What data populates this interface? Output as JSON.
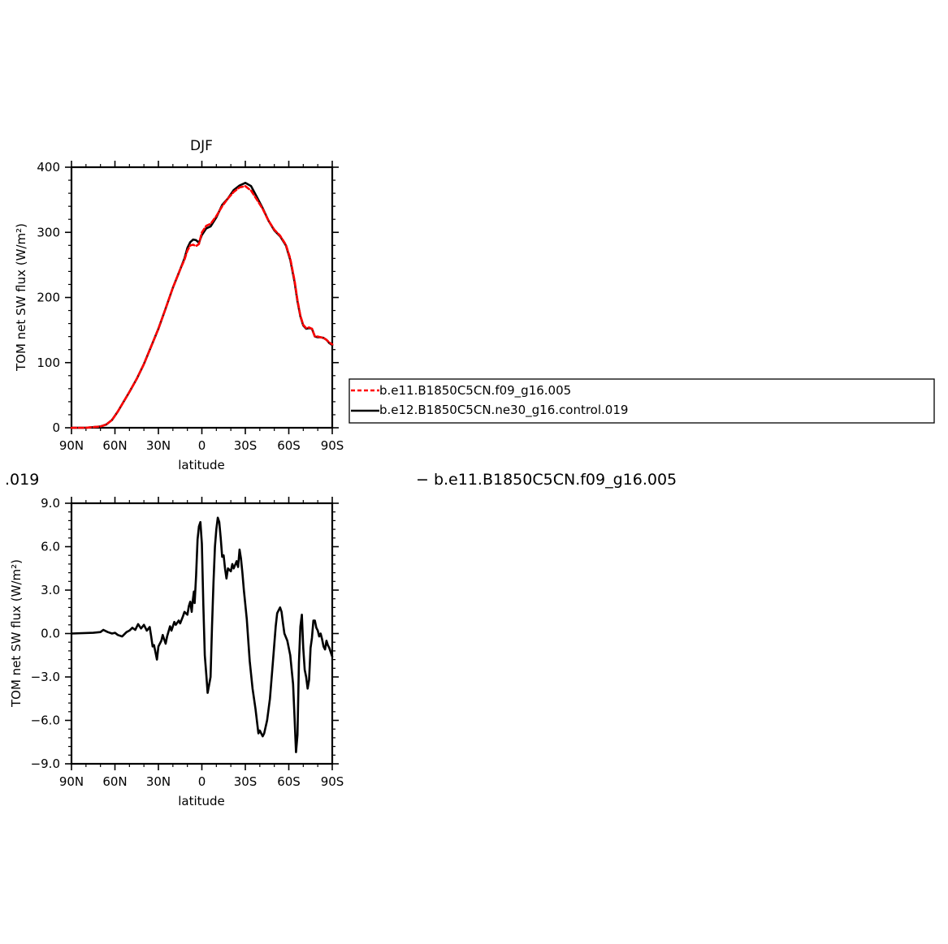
{
  "chart_data": [
    {
      "type": "line",
      "title": "DJF",
      "xlabel": "latitude",
      "ylabel": "TOM net SW flux (W/m²)",
      "xlim": [
        90,
        -90
      ],
      "ylim": [
        0,
        400
      ],
      "x_ticks": [
        "90N",
        "60N",
        "30N",
        "0",
        "30S",
        "60S",
        "90S"
      ],
      "y_ticks": [
        "0",
        "100",
        "200",
        "300",
        "400"
      ],
      "x": [
        90,
        80,
        70,
        66,
        62,
        58,
        54,
        50,
        45,
        40,
        35,
        30,
        25,
        20,
        15,
        12,
        10,
        8,
        6,
        4,
        2,
        0,
        -3,
        -6,
        -10,
        -14,
        -18,
        -22,
        -26,
        -30,
        -34,
        -38,
        -42,
        -46,
        -50,
        -54,
        -58,
        -61,
        -64,
        -66,
        -68,
        -70,
        -72,
        -74,
        -76,
        -78,
        -80,
        -82,
        -84,
        -86,
        -88,
        -90
      ],
      "series": [
        {
          "name": "b.e11.B1850C5CN.f09_g16.005",
          "color": "#ff0000",
          "dash": "dashed",
          "values": [
            0,
            0,
            2,
            5,
            12,
            25,
            40,
            55,
            75,
            98,
            125,
            152,
            183,
            215,
            243,
            258,
            272,
            280,
            281,
            279,
            282,
            300,
            310,
            313,
            325,
            340,
            352,
            362,
            369,
            371,
            364,
            350,
            336,
            318,
            304,
            295,
            281,
            260,
            226,
            196,
            172,
            158,
            153,
            154,
            152,
            140,
            140,
            139,
            138,
            135,
            131,
            128
          ]
        },
        {
          "name": "b.e12.B1850C5CN.ne30_g16.control.019",
          "color": "#000000",
          "dash": "solid",
          "values": [
            0,
            0,
            2,
            5,
            12,
            25,
            40,
            55,
            75,
            98,
            125,
            152,
            183,
            215,
            243,
            260,
            276,
            285,
            289,
            288,
            284,
            296,
            306,
            309,
            323,
            342,
            352,
            365,
            372,
            376,
            371,
            354,
            337,
            318,
            303,
            294,
            280,
            258,
            224,
            194,
            171,
            157,
            152,
            153,
            152,
            140,
            139,
            139,
            138,
            135,
            130,
            127
          ]
        }
      ],
      "legend": "right"
    },
    {
      "type": "line",
      "title": "",
      "xlabel": "latitude",
      "ylabel": "TOM net SW flux (W/m²)",
      "xlim": [
        90,
        -90
      ],
      "ylim": [
        -9,
        9
      ],
      "x_ticks": [
        "90N",
        "60N",
        "30N",
        "0",
        "30S",
        "60S",
        "90S"
      ],
      "y_ticks": [
        "−9.0",
        "−6.0",
        "−3.0",
        "0.0",
        "3.0",
        "6.0",
        "9.0"
      ],
      "x": [
        90,
        75,
        70,
        68,
        65,
        62,
        60,
        58,
        55,
        52,
        50,
        48,
        46,
        44,
        42,
        40,
        38,
        36,
        35,
        34,
        33,
        31,
        30,
        28,
        27,
        25,
        24,
        22,
        21,
        19,
        18,
        16,
        15,
        13,
        12,
        10,
        9,
        8,
        7,
        6.5,
        5.5,
        5,
        4,
        3,
        2,
        1,
        0,
        -1,
        -2,
        -3,
        -4,
        -6,
        -7,
        -8,
        -9,
        -10,
        -11,
        -12,
        -13,
        -14,
        -15,
        -16,
        -17,
        -18,
        -20,
        -21,
        -22,
        -24,
        -25,
        -26,
        -27,
        -28,
        -29,
        -31,
        -33,
        -35,
        -37,
        -39,
        -40,
        -42,
        -43,
        -45,
        -47,
        -49,
        -51,
        -52,
        -54,
        -55,
        -56,
        -57,
        -59,
        -61,
        -63,
        -64,
        -65,
        -66,
        -67,
        -68,
        -69,
        -70,
        -71,
        -72,
        -73,
        -74,
        -75,
        -76,
        -77,
        -78,
        -79,
        -80,
        -81,
        -82,
        -83,
        -84,
        -85,
        -86,
        -87,
        -88,
        -89,
        -90
      ],
      "series": [
        {
          "name": "",
          "color": "#000000",
          "values": [
            0.0,
            0.05,
            0.1,
            0.25,
            0.1,
            0.0,
            0.05,
            -0.1,
            -0.2,
            0.1,
            0.2,
            0.4,
            0.25,
            0.65,
            0.35,
            0.6,
            0.2,
            0.45,
            -0.2,
            -0.9,
            -0.8,
            -1.8,
            -0.9,
            -0.5,
            -0.1,
            -0.7,
            -0.2,
            0.5,
            0.2,
            0.8,
            0.6,
            0.9,
            0.7,
            1.2,
            1.5,
            1.3,
            1.9,
            2.2,
            1.5,
            2.1,
            2.9,
            2.1,
            4.0,
            6.5,
            7.4,
            7.7,
            6.2,
            2.0,
            -1.5,
            -2.8,
            -4.1,
            -3.0,
            0.5,
            3.5,
            6.0,
            7.2,
            8.0,
            7.7,
            6.6,
            5.3,
            5.4,
            4.5,
            3.8,
            4.5,
            4.3,
            4.8,
            4.5,
            5.0,
            4.6,
            5.8,
            5.2,
            4.2,
            3.0,
            1.0,
            -1.9,
            -3.8,
            -5.2,
            -6.9,
            -6.7,
            -7.1,
            -6.9,
            -6.0,
            -4.5,
            -2.0,
            0.5,
            1.4,
            1.8,
            1.5,
            0.7,
            0.0,
            -0.5,
            -1.5,
            -3.5,
            -5.8,
            -8.2,
            -7.0,
            -2.0,
            0.5,
            1.3,
            -1.0,
            -2.5,
            -3.0,
            -3.8,
            -3.2,
            -1.0,
            -0.3,
            0.9,
            0.9,
            0.4,
            0.2,
            -0.2,
            0.0,
            -0.4,
            -0.9,
            -1.1,
            -0.5,
            -0.8,
            -1.0,
            -1.3,
            -1.6
          ]
        }
      ]
    }
  ],
  "legend": {
    "items": [
      "b.e11.B1850C5CN.f09_g16.005",
      "b.e12.B1850C5CN.ne30_g16.control.019"
    ]
  },
  "fragments": {
    "left_text": ".019",
    "right_text": "−  b.e11.B1850C5CN.f09_g16.005"
  }
}
